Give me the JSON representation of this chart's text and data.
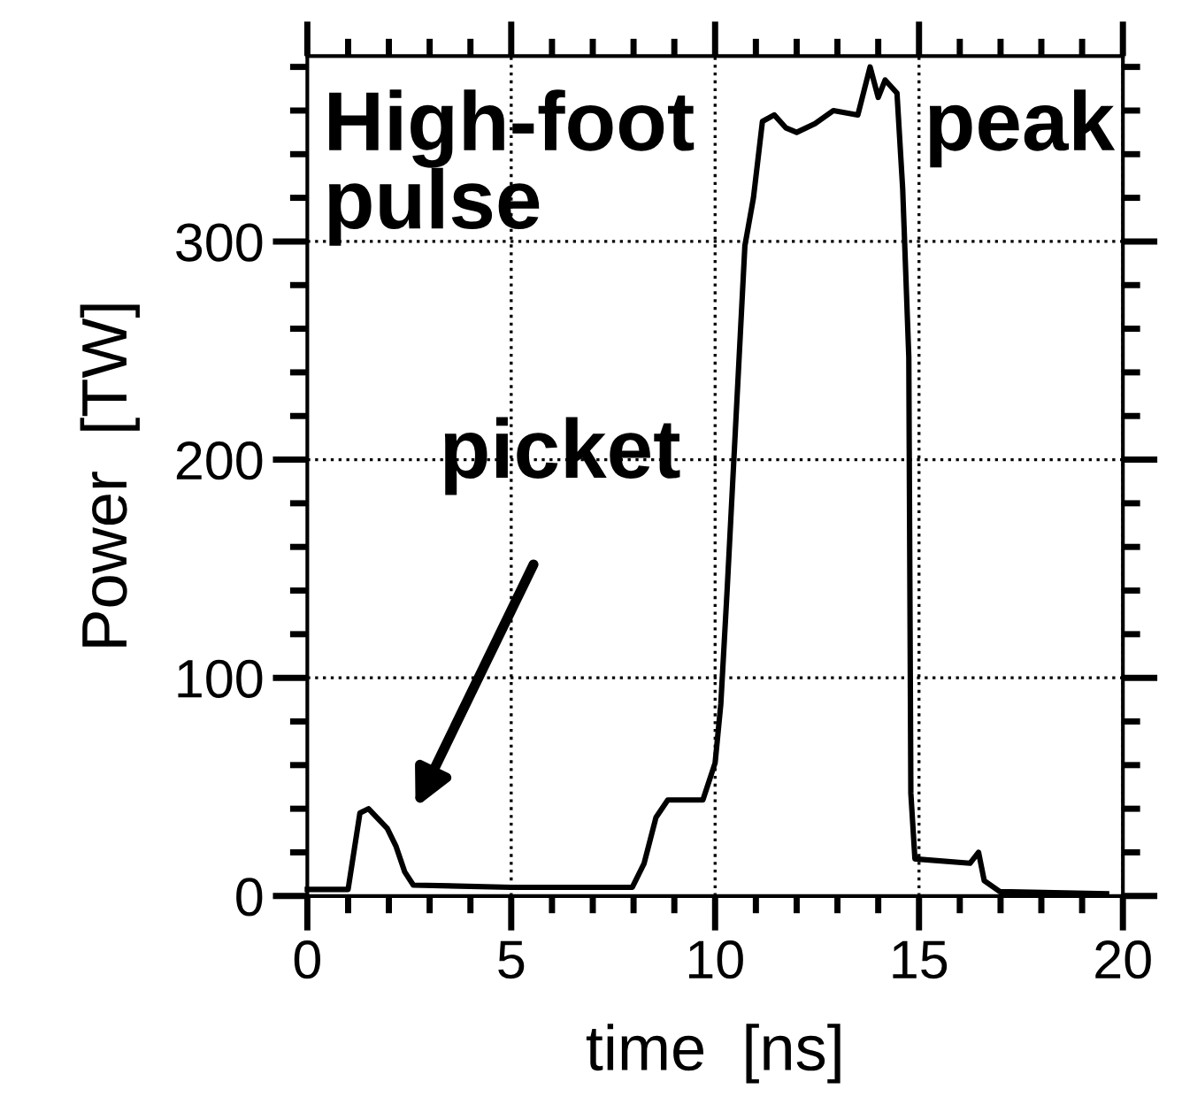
{
  "chart_data": {
    "type": "line",
    "xlabel": "time  [ns]",
    "ylabel": "Power  [TW]",
    "series": [
      {
        "color": "#000000",
        "x": [
          0,
          1.0,
          1.29,
          1.5,
          1.96,
          2.17,
          2.39,
          2.6,
          5,
          7.97,
          8.26,
          8.55,
          8.84,
          9.7,
          10,
          10.14,
          10.3,
          10.73,
          10.94,
          11.16,
          11.45,
          11.74,
          12.0,
          12.45,
          12.9,
          13.5,
          13.8,
          14.0,
          14.17,
          14.46,
          14.6,
          14.75,
          14.8,
          14.9,
          16.25,
          16.46,
          16.6,
          16.98,
          19.6
        ],
        "values": [
          3,
          3,
          38,
          40,
          31,
          23,
          11,
          5,
          4,
          4,
          15,
          36,
          44,
          44,
          61,
          88,
          142,
          298,
          320,
          355,
          358,
          352,
          350,
          354,
          360,
          358,
          380,
          366,
          374,
          368,
          324,
          247,
          47,
          17,
          15,
          20,
          7,
          2,
          1
        ]
      }
    ],
    "xlim": [
      0,
      20
    ],
    "ylim": [
      0,
      385
    ],
    "xticks": [
      0,
      5,
      10,
      15,
      20
    ],
    "yticks": [
      0,
      100,
      200,
      300
    ],
    "grid": true,
    "legend": false,
    "marker": "none",
    "line_style": "solid",
    "annotations": [
      "High-foot\npulse",
      "peak",
      "picket"
    ]
  }
}
